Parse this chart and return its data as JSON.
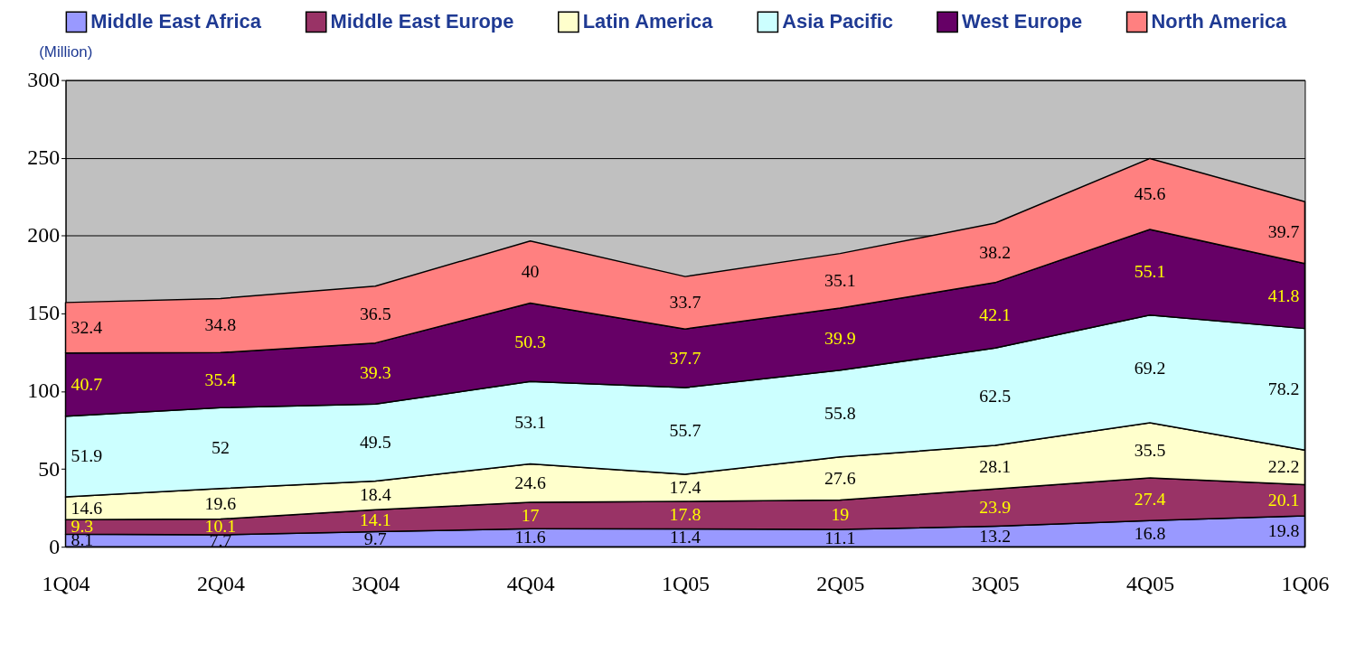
{
  "chart_data": {
    "type": "area",
    "stacked": true,
    "ylabel": "(Million)",
    "categories": [
      "1Q04",
      "2Q04",
      "3Q04",
      "4Q04",
      "1Q05",
      "2Q05",
      "3Q05",
      "4Q05",
      "1Q06"
    ],
    "series": [
      {
        "name": "Middle East Africa",
        "color": "#9999ff",
        "values": [
          8.1,
          7.7,
          9.7,
          11.6,
          11.4,
          11.1,
          13.2,
          16.8,
          19.8
        ]
      },
      {
        "name": "Middle East Europe",
        "color": "#993366",
        "values": [
          9.3,
          10.1,
          14.1,
          17,
          17.8,
          19,
          23.9,
          27.4,
          20.1
        ]
      },
      {
        "name": "Latin America",
        "color": "#ffffcc",
        "values": [
          14.6,
          19.6,
          18.4,
          24.6,
          17.4,
          27.6,
          28.1,
          35.5,
          22.2
        ]
      },
      {
        "name": "Asia Pacific",
        "color": "#ccffff",
        "values": [
          51.9,
          52,
          49.5,
          53.1,
          55.7,
          55.8,
          62.5,
          69.2,
          78.2
        ]
      },
      {
        "name": "West Europe",
        "color": "#660066",
        "values": [
          40.7,
          35.4,
          39.3,
          50.3,
          37.7,
          39.9,
          42.1,
          55.1,
          41.8
        ]
      },
      {
        "name": "North America",
        "color": "#ff8080",
        "values": [
          32.4,
          34.8,
          36.5,
          40,
          33.7,
          35.1,
          38.2,
          45.6,
          39.7
        ]
      }
    ],
    "ylim": [
      0,
      300
    ],
    "yticks": [
      0,
      50,
      100,
      150,
      200,
      250,
      300
    ],
    "grid": "y",
    "legend": "top",
    "data_labels": true
  }
}
